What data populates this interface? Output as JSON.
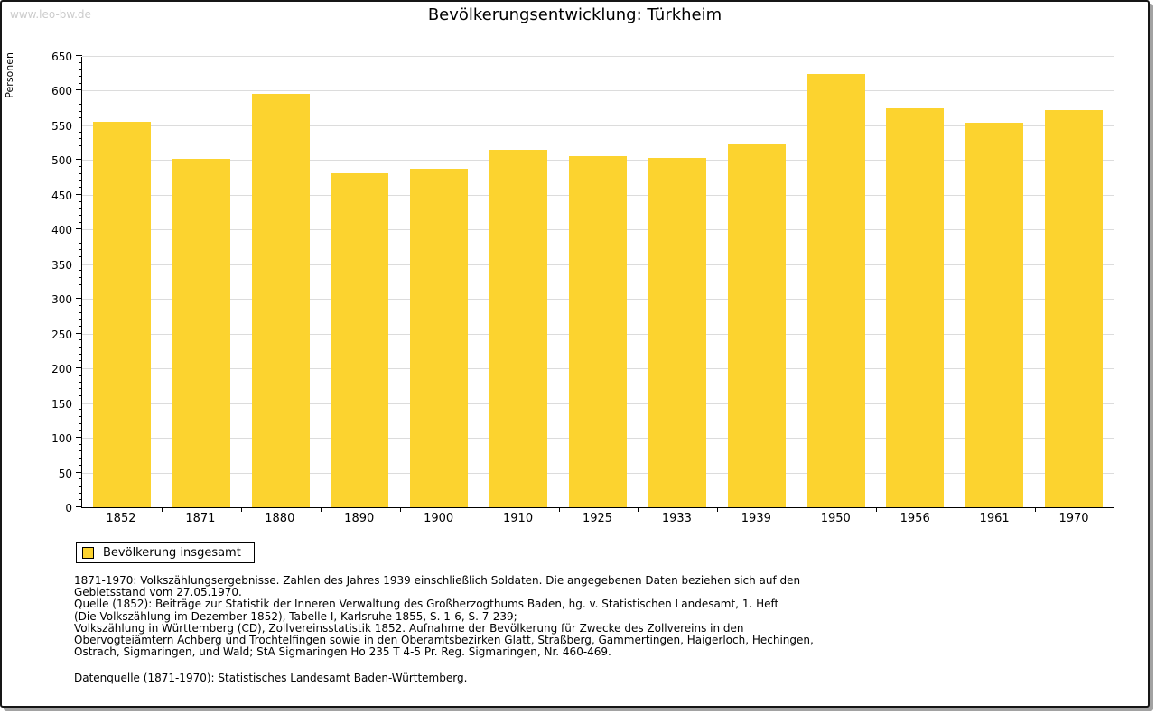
{
  "page": {
    "watermark": "www.leo-bw.de",
    "title": "Bevölkerungsentwicklung: Türkheim"
  },
  "chart_data": {
    "type": "bar",
    "title": "Bevölkerungsentwicklung: Türkheim",
    "xlabel": "",
    "ylabel": "Personen",
    "categories": [
      "1852",
      "1871",
      "1880",
      "1890",
      "1900",
      "1910",
      "1925",
      "1933",
      "1939",
      "1950",
      "1956",
      "1961",
      "1970"
    ],
    "series": [
      {
        "name": "Bevölkerung insgesamt",
        "values": [
          555,
          502,
          596,
          481,
          488,
          515,
          506,
          503,
          524,
          624,
          574,
          554,
          572
        ]
      }
    ],
    "ylim": [
      0,
      650
    ],
    "ytick_step": 50,
    "ytick_minor_step": 10,
    "grid": true,
    "legend_position": "bottom-left",
    "bar_color": "#fcd32f",
    "grid_color": "#dcdcdc",
    "axis_color": "#000000"
  },
  "legend": {
    "label": "Bevölkerung insgesamt",
    "swatch_color": "#fcd32f"
  },
  "footnotes": {
    "lines": [
      "1871-1970: Volkszählungsergebnisse. Zahlen des Jahres 1939 einschließlich Soldaten. Die angegebenen Daten beziehen sich auf den",
      "Gebietsstand vom 27.05.1970.",
      "Quelle (1852): Beiträge zur Statistik der Inneren Verwaltung des Großherzogthums Baden, hg. v. Statistischen Landesamt, 1. Heft",
      "(Die Volkszählung im Dezember 1852), Tabelle I, Karlsruhe 1855, S. 1-6, S. 7-239;",
      "Volkszählung in Württemberg (CD), Zollvereinsstatistik 1852. Aufnahme der Bevölkerung für Zwecke des Zollvereins in den",
      "Obervogteiämtern Achberg und Trochtelfingen sowie in den Oberamtsbezirken Glatt, Straßberg, Gammertingen, Haigerloch, Hechingen,",
      "Ostrach, Sigmaringen, und Wald; StA Sigmaringen Ho 235 T 4-5 Pr. Reg. Sigmaringen, Nr. 460-469."
    ],
    "datasource": "Datenquelle (1871-1970): Statistisches Landesamt Baden-Württemberg."
  }
}
